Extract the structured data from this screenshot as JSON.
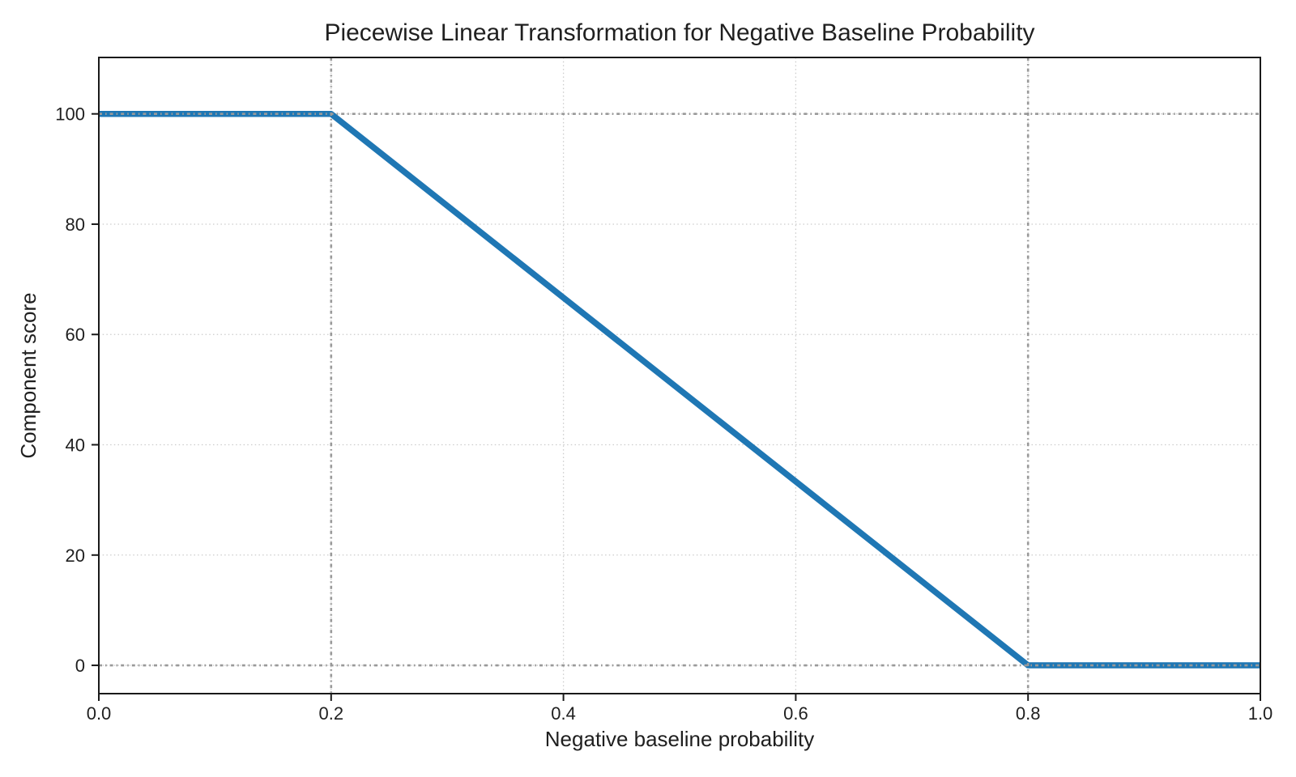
{
  "chart_data": {
    "type": "line",
    "title": "Piecewise Linear Transformation for Negative Baseline Probability",
    "xlabel": "Negative baseline probability",
    "ylabel": "Component score",
    "series": [
      {
        "name": "component-score-curve",
        "color": "#1f77b4",
        "points": [
          [
            0.0,
            100
          ],
          [
            0.2,
            100
          ],
          [
            0.8,
            0
          ],
          [
            1.0,
            0
          ]
        ]
      }
    ],
    "x_ticks": [
      0.0,
      0.2,
      0.4,
      0.6,
      0.8,
      1.0
    ],
    "x_tick_labels": [
      "0.0",
      "0.2",
      "0.4",
      "0.6",
      "0.8",
      "1.0"
    ],
    "y_ticks": [
      0,
      20,
      40,
      60,
      80,
      100
    ],
    "y_tick_labels": [
      "0",
      "20",
      "40",
      "60",
      "80",
      "100"
    ],
    "xlim": [
      0.0,
      1.0
    ],
    "ylim": [
      -5.13,
      110.23
    ],
    "grid": {
      "on": true,
      "style": "dotted",
      "color": "#cccccc"
    },
    "reference_lines": {
      "style": "dash-dot",
      "color": "#999999",
      "horizontal_y": [
        100,
        0
      ],
      "vertical_x": [
        0.2,
        0.8
      ]
    },
    "legend": "none",
    "colors": {
      "line": "#1f77b4",
      "grid": "#cccccc",
      "reference": "#999999",
      "spine": "#1a1a1a",
      "text": "#1f1f1f",
      "background": "#ffffff"
    }
  }
}
